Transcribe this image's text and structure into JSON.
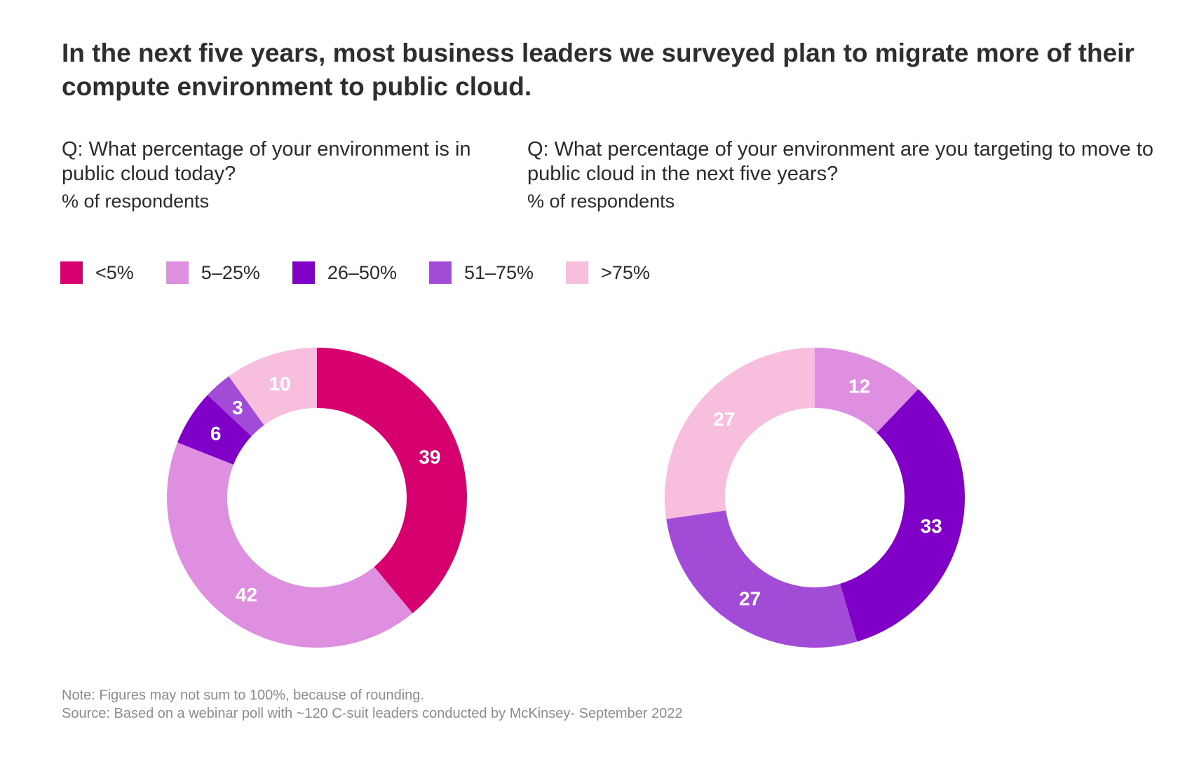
{
  "headline": "In the next five years, most business leaders we surveyed plan to migrate more of their compute environment to public cloud.",
  "questions": {
    "left": {
      "text": "Q: What percentage of your environment is in public cloud today?",
      "unit": "% of respondents"
    },
    "right": {
      "text": "Q: What percentage of your environment are you targeting to move to public cloud in the next five years?",
      "unit": "% of respondents"
    }
  },
  "legend": [
    {
      "label": "<5%",
      "color": "#d6006f"
    },
    {
      "label": "5–25%",
      "color": "#df8fdf"
    },
    {
      "label": "26–50%",
      "color": "#8000c8"
    },
    {
      "label": "51–75%",
      "color": "#a24bd6"
    },
    {
      "label": ">75%",
      "color": "#f7bedd"
    }
  ],
  "chart_data": [
    {
      "type": "pie",
      "style": "donut",
      "title": "What percentage of your environment is in public cloud today?",
      "unit": "% of respondents",
      "categories": [
        "<5%",
        "5–25%",
        "26–50%",
        "51–75%",
        ">75%"
      ],
      "values": [
        39,
        42,
        6,
        3,
        10
      ],
      "colors": [
        "#d6006f",
        "#df8fdf",
        "#8000c8",
        "#a24bd6",
        "#f7bedd"
      ]
    },
    {
      "type": "pie",
      "style": "donut",
      "title": "What percentage of your environment are you targeting to move to public cloud in the next five years?",
      "unit": "% of respondents",
      "categories": [
        "5–25%",
        "26–50%",
        "51–75%",
        ">75%"
      ],
      "values": [
        12,
        33,
        27,
        27
      ],
      "colors": [
        "#df8fdf",
        "#8000c8",
        "#a24bd6",
        "#f7bedd"
      ]
    }
  ],
  "footnotes": {
    "note": "Note: Figures may not sum to 100%, because of rounding.",
    "source": "Source: Based on a webinar poll with ~120 C-suit leaders conducted by McKinsey- September 2022"
  }
}
